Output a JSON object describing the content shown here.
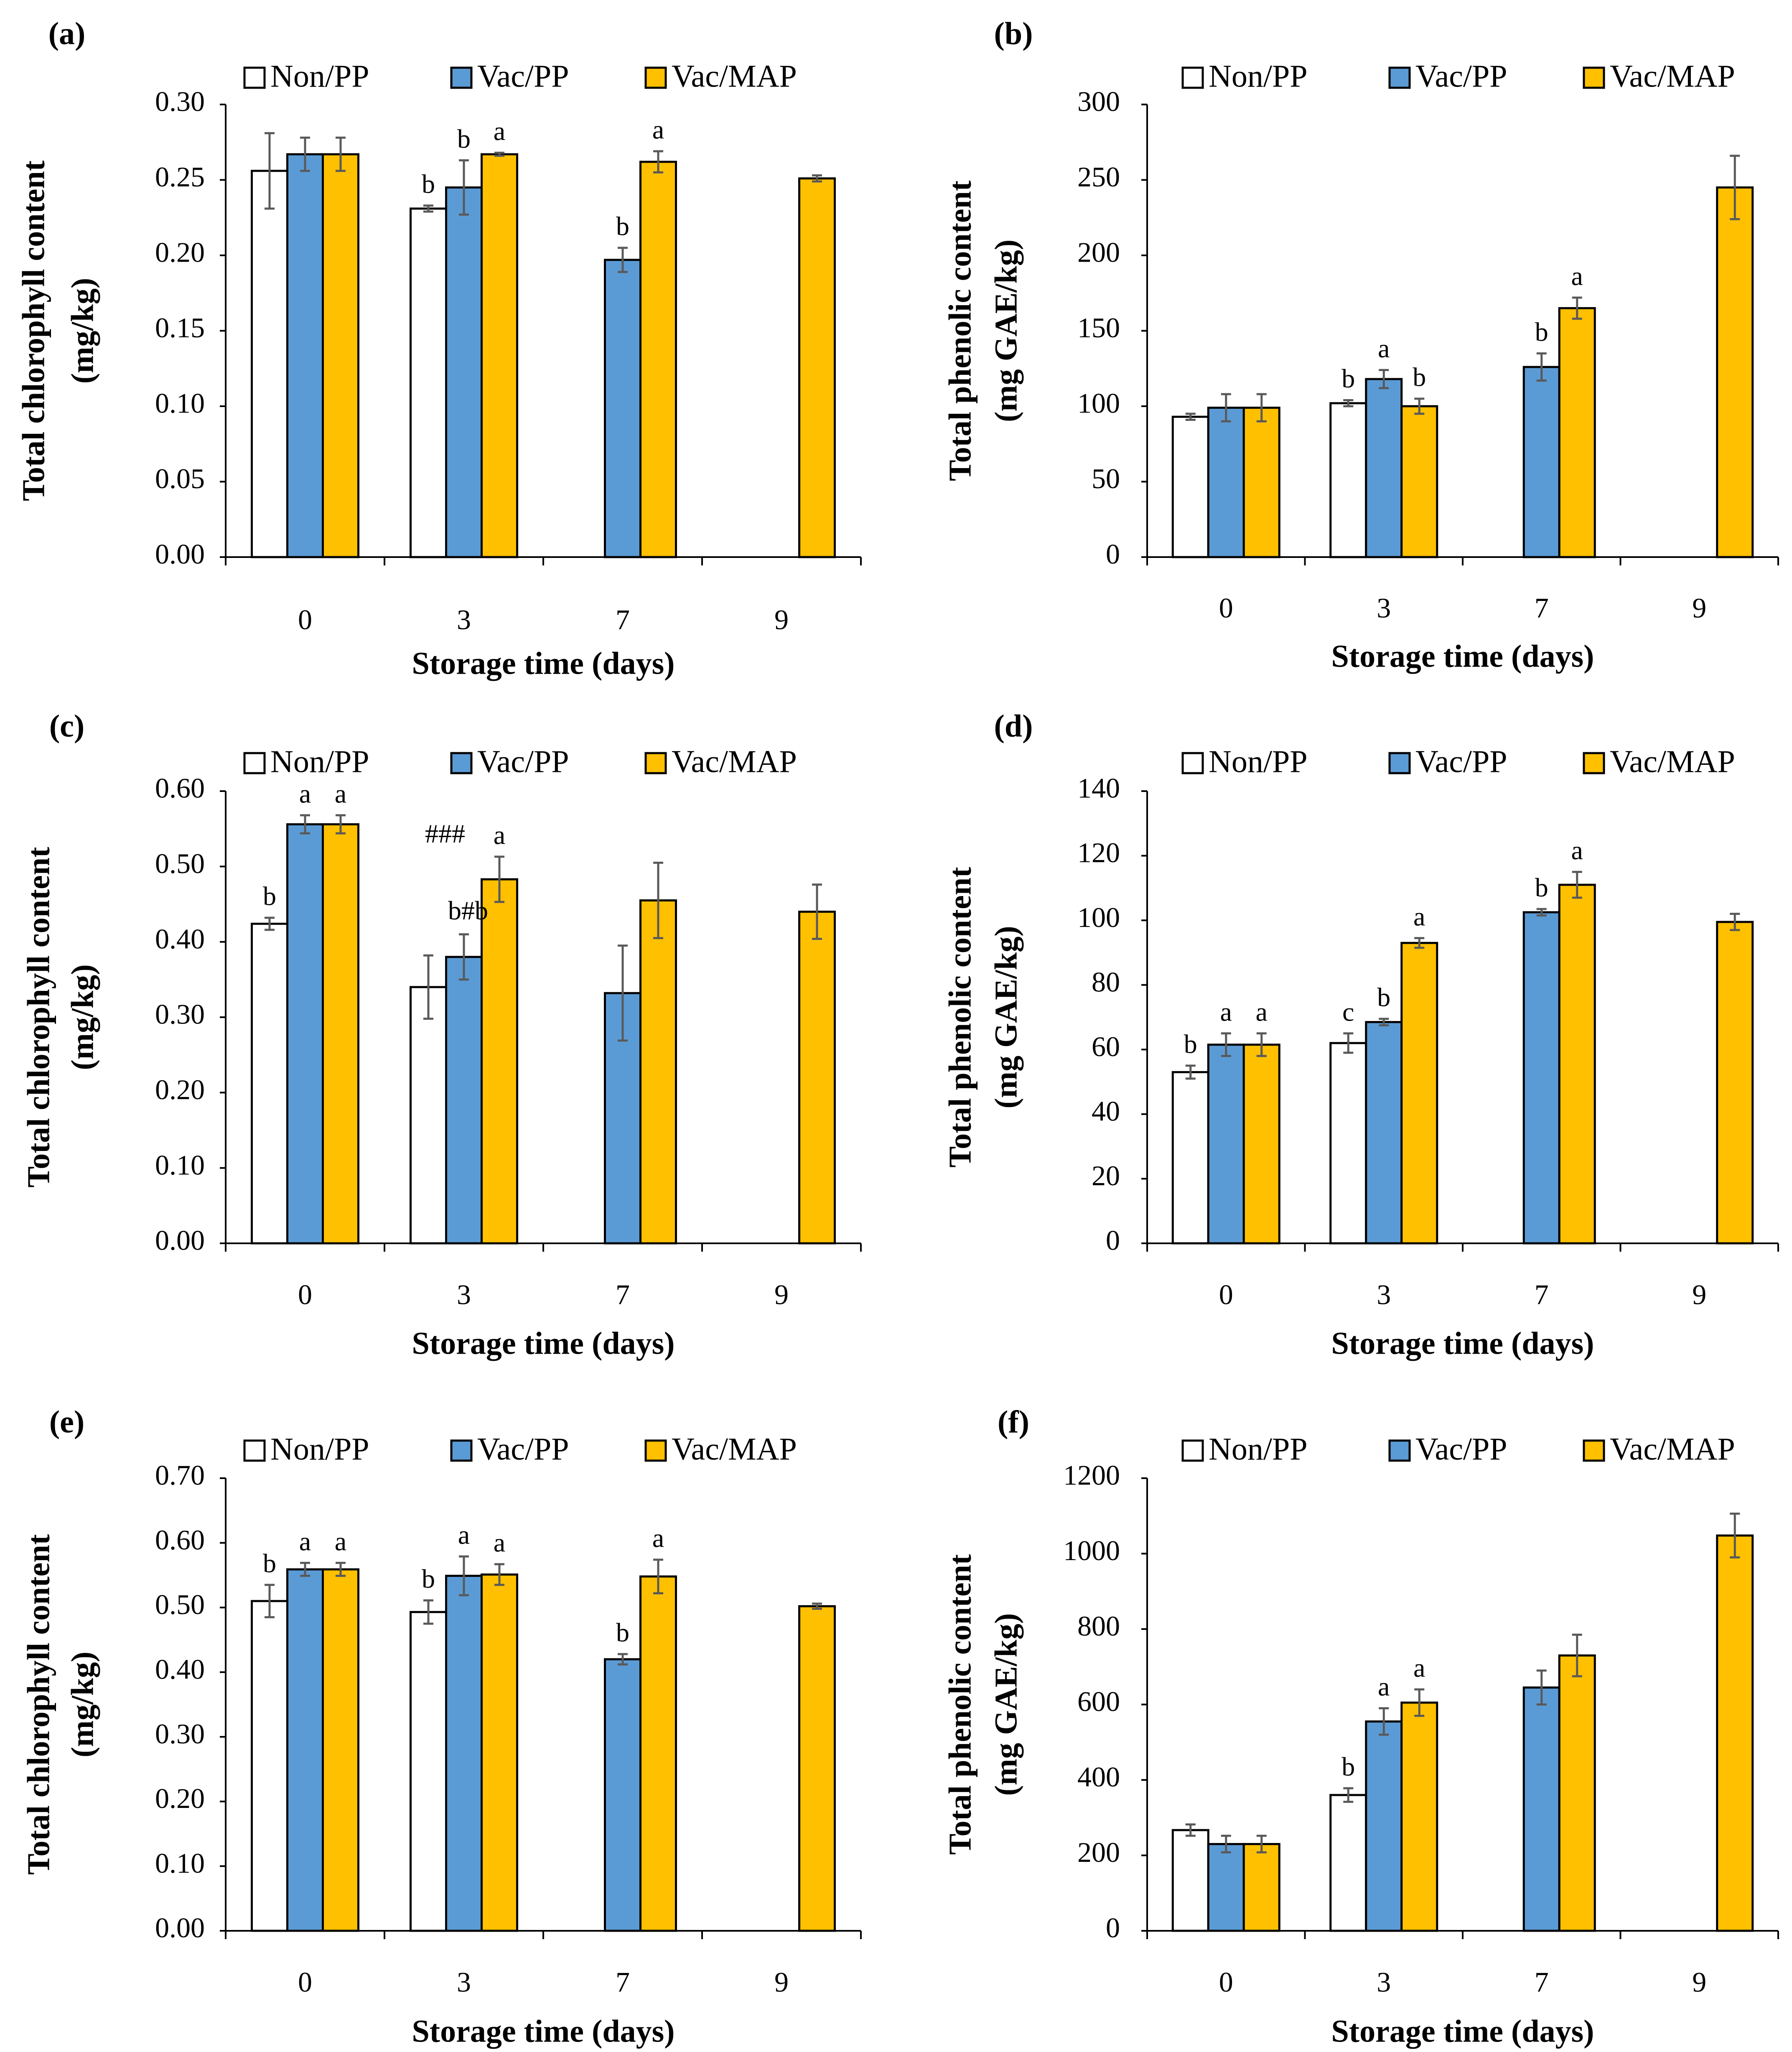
{
  "colors": {
    "Non/PP": "#ffffff",
    "Vac/PP": "#5b9bd5",
    "Vac/MAP": "#ffc000"
  },
  "chart_data": [
    {
      "panel": "(a)",
      "type": "bar",
      "categories": [
        "0",
        "3",
        "7",
        "9"
      ],
      "series": [
        {
          "name": "Non/PP",
          "values": [
            0.256,
            0.231,
            null,
            null
          ],
          "errors": [
            0.025,
            0.002,
            null,
            null
          ],
          "labels": [
            "",
            "b",
            "",
            ""
          ]
        },
        {
          "name": "Vac/PP",
          "values": [
            0.267,
            0.245,
            0.197,
            null
          ],
          "errors": [
            0.011,
            0.018,
            0.008,
            null
          ],
          "labels": [
            "",
            "b",
            "b",
            ""
          ]
        },
        {
          "name": "Vac/MAP",
          "values": [
            0.267,
            0.267,
            0.262,
            0.251
          ],
          "errors": [
            0.011,
            0.001,
            0.007,
            0.002
          ],
          "labels": [
            "",
            "a",
            "a",
            ""
          ]
        }
      ],
      "extra_labels": [],
      "ylabel": [
        "Total chlorophyll content",
        "(mg/kg)"
      ],
      "xlabel": "Storage time (days)",
      "ylim": [
        0,
        0.3
      ],
      "yticks": [
        "0.00",
        "0.05",
        "0.10",
        "0.15",
        "0.20",
        "0.25",
        "0.30"
      ]
    },
    {
      "panel": "(b)",
      "type": "bar",
      "categories": [
        "0",
        "3",
        "7",
        "9"
      ],
      "series": [
        {
          "name": "Non/PP",
          "values": [
            93,
            102,
            null,
            null
          ],
          "errors": [
            2,
            2,
            null,
            null
          ],
          "labels": [
            "",
            "b",
            "",
            ""
          ]
        },
        {
          "name": "Vac/PP",
          "values": [
            99,
            118,
            126,
            null
          ],
          "errors": [
            9,
            6,
            9,
            null
          ],
          "labels": [
            "",
            "a",
            "b",
            ""
          ]
        },
        {
          "name": "Vac/MAP",
          "values": [
            99,
            100,
            165,
            245
          ],
          "errors": [
            9,
            5,
            7,
            21
          ],
          "labels": [
            "",
            "b",
            "a",
            ""
          ]
        }
      ],
      "extra_labels": [],
      "ylabel": [
        "Total phenolic content",
        "(mg GAE/kg)"
      ],
      "xlabel": "Storage time (days)",
      "ylim": [
        0,
        300
      ],
      "yticks": [
        "0",
        "50",
        "100",
        "150",
        "200",
        "250",
        "300"
      ]
    },
    {
      "panel": "(c)",
      "type": "bar",
      "categories": [
        "0",
        "3",
        "7",
        "9"
      ],
      "series": [
        {
          "name": "Non/PP",
          "values": [
            0.424,
            0.34,
            null,
            null
          ],
          "errors": [
            0.008,
            0.042,
            null,
            null
          ],
          "labels": [
            "b",
            "",
            "",
            ""
          ]
        },
        {
          "name": "Vac/PP",
          "values": [
            0.556,
            0.38,
            0.332,
            null
          ],
          "errors": [
            0.012,
            0.03,
            0.063,
            null
          ],
          "labels": [
            "a",
            "",
            "",
            ""
          ]
        },
        {
          "name": "Vac/MAP",
          "values": [
            0.556,
            0.483,
            0.455,
            0.44
          ],
          "errors": [
            0.012,
            0.03,
            0.05,
            0.036
          ],
          "labels": [
            "a",
            "a",
            "",
            ""
          ]
        }
      ],
      "extra_labels": [
        {
          "text": "###",
          "category": 1,
          "series": 0,
          "value": 0.54
        },
        {
          "text": "b#b",
          "category": 1,
          "series": 1,
          "value": 0.438
        }
      ],
      "ylabel": [
        "Total chlorophyll content",
        "(mg/kg)"
      ],
      "xlabel": "Storage time (days)",
      "ylim": [
        0,
        0.6
      ],
      "yticks": [
        "0.00",
        "0.10",
        "0.20",
        "0.30",
        "0.40",
        "0.50",
        "0.60"
      ]
    },
    {
      "panel": "(d)",
      "type": "bar",
      "categories": [
        "0",
        "3",
        "7",
        "9"
      ],
      "series": [
        {
          "name": "Non/PP",
          "values": [
            53,
            62,
            null,
            null
          ],
          "errors": [
            2,
            3,
            null,
            null
          ],
          "labels": [
            "b",
            "c",
            "",
            ""
          ]
        },
        {
          "name": "Vac/PP",
          "values": [
            61.5,
            68.5,
            102.5,
            null
          ],
          "errors": [
            3.5,
            1,
            1,
            null
          ],
          "labels": [
            "a",
            "b",
            "b",
            ""
          ]
        },
        {
          "name": "Vac/MAP",
          "values": [
            61.5,
            93,
            111,
            99.5
          ],
          "errors": [
            3.5,
            1.5,
            4,
            2.5
          ],
          "labels": [
            "a",
            "a",
            "a",
            ""
          ]
        }
      ],
      "extra_labels": [],
      "ylabel": [
        "Total phenolic content",
        "(mg GAE/kg)"
      ],
      "xlabel": "Storage time (days)",
      "ylim": [
        0,
        140
      ],
      "yticks": [
        "0",
        "20",
        "40",
        "60",
        "80",
        "100",
        "120",
        "140"
      ]
    },
    {
      "panel": "(e)",
      "type": "bar",
      "categories": [
        "0",
        "3",
        "7",
        "9"
      ],
      "series": [
        {
          "name": "Non/PP",
          "values": [
            0.51,
            0.493,
            null,
            null
          ],
          "errors": [
            0.025,
            0.018,
            null,
            null
          ],
          "labels": [
            "b",
            "b",
            "",
            ""
          ]
        },
        {
          "name": "Vac/PP",
          "values": [
            0.559,
            0.549,
            0.42,
            null
          ],
          "errors": [
            0.01,
            0.03,
            0.008,
            null
          ],
          "labels": [
            "a",
            "a",
            "b",
            ""
          ]
        },
        {
          "name": "Vac/MAP",
          "values": [
            0.559,
            0.551,
            0.548,
            0.502
          ],
          "errors": [
            0.01,
            0.016,
            0.026,
            0.004
          ],
          "labels": [
            "a",
            "a",
            "a",
            ""
          ]
        }
      ],
      "extra_labels": [],
      "ylabel": [
        "Total chlorophyll content",
        "(mg/kg)"
      ],
      "xlabel": "Storage time (days)",
      "ylim": [
        0,
        0.7
      ],
      "yticks": [
        "0.00",
        "0.10",
        "0.20",
        "0.30",
        "0.40",
        "0.50",
        "0.60",
        "0.70"
      ]
    },
    {
      "panel": "(f)",
      "type": "bar",
      "categories": [
        "0",
        "3",
        "7",
        "9"
      ],
      "series": [
        {
          "name": "Non/PP",
          "values": [
            267,
            360,
            null,
            null
          ],
          "errors": [
            15,
            18,
            null,
            null
          ],
          "labels": [
            "",
            "b",
            "",
            ""
          ]
        },
        {
          "name": "Vac/PP",
          "values": [
            230,
            555,
            645,
            null
          ],
          "errors": [
            22,
            35,
            45,
            null
          ],
          "labels": [
            "",
            "a",
            "",
            ""
          ]
        },
        {
          "name": "Vac/MAP",
          "values": [
            230,
            605,
            730,
            1048
          ],
          "errors": [
            22,
            35,
            55,
            58
          ],
          "labels": [
            "",
            "a",
            "",
            ""
          ]
        }
      ],
      "extra_labels": [],
      "ylabel": [
        "Total phenolic content",
        "(mg GAE/kg)"
      ],
      "xlabel": "Storage time (days)",
      "ylim": [
        0,
        1200
      ],
      "yticks": [
        "0",
        "200",
        "400",
        "600",
        "800",
        "1000",
        "1200"
      ]
    }
  ]
}
